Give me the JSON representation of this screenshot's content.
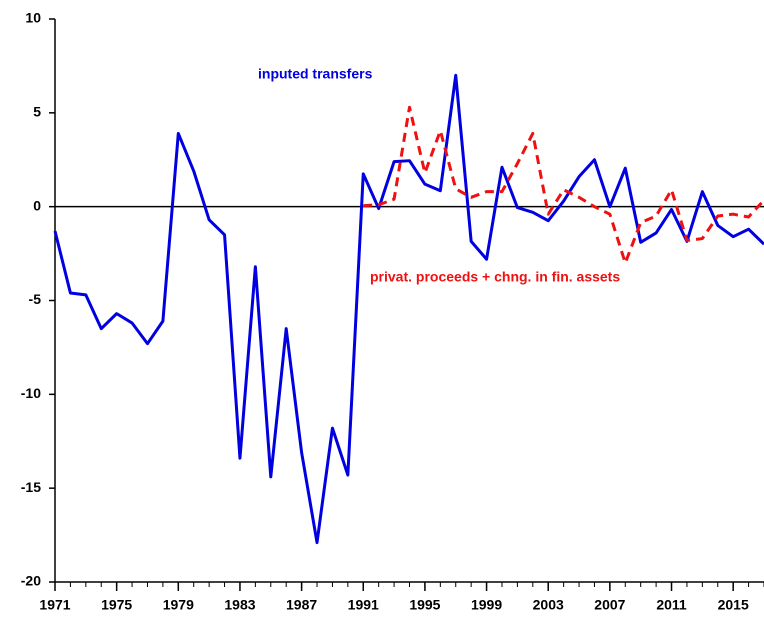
{
  "chart_data": {
    "type": "line",
    "x": [
      1971,
      1972,
      1973,
      1974,
      1975,
      1976,
      1977,
      1978,
      1979,
      1980,
      1981,
      1982,
      1983,
      1984,
      1985,
      1986,
      1987,
      1988,
      1989,
      1990,
      1991,
      1992,
      1993,
      1994,
      1995,
      1996,
      1997,
      1998,
      1999,
      2000,
      2001,
      2002,
      2003,
      2004,
      2005,
      2006,
      2007,
      2008,
      2009,
      2010,
      2011,
      2012,
      2013,
      2014,
      2015,
      2016,
      2017
    ],
    "series": [
      {
        "name": "inputed transfers",
        "color": "#0000e0",
        "dashed": false,
        "values": [
          -1.3,
          -4.6,
          -4.7,
          -6.5,
          -5.7,
          -6.2,
          -7.3,
          -6.1,
          3.9,
          1.9,
          -0.7,
          -1.5,
          -13.4,
          -3.2,
          -14.4,
          -6.5,
          -13.1,
          -17.9,
          -11.8,
          -14.3,
          1.75,
          -0.1,
          2.4,
          2.45,
          1.2,
          0.85,
          7.0,
          -1.85,
          -2.8,
          2.1,
          -0.05,
          -0.3,
          -0.75,
          0.3,
          1.6,
          2.5,
          0,
          2.05,
          -1.9,
          -1.4,
          -0.15,
          -1.85,
          0.8,
          -1.0,
          -1.6,
          -1.2,
          -2.0
        ]
      },
      {
        "name": "privat. proceeds + chng. in fin. assets",
        "color": "#ee1111",
        "dashed": true,
        "values": [
          null,
          null,
          null,
          null,
          null,
          null,
          null,
          null,
          null,
          null,
          null,
          null,
          null,
          null,
          null,
          null,
          null,
          null,
          null,
          null,
          0.05,
          0.1,
          0.4,
          5.3,
          1.8,
          4.05,
          0.95,
          0.5,
          0.8,
          0.8,
          2.3,
          3.9,
          -0.4,
          0.9,
          0.5,
          0,
          -0.4,
          -3.0,
          -0.85,
          -0.5,
          0.9,
          -1.8,
          -1.7,
          -0.5,
          -0.4,
          -0.55,
          0.35
        ]
      }
    ],
    "xlim": [
      1971,
      2017
    ],
    "xticks": [
      1971,
      1975,
      1979,
      1983,
      1987,
      1991,
      1995,
      1999,
      2003,
      2007,
      2011,
      2015
    ],
    "ylim": [
      -20,
      10
    ],
    "yticks": [
      -20,
      -15,
      -10,
      -5,
      0,
      5,
      10
    ],
    "reference_line": 0
  }
}
